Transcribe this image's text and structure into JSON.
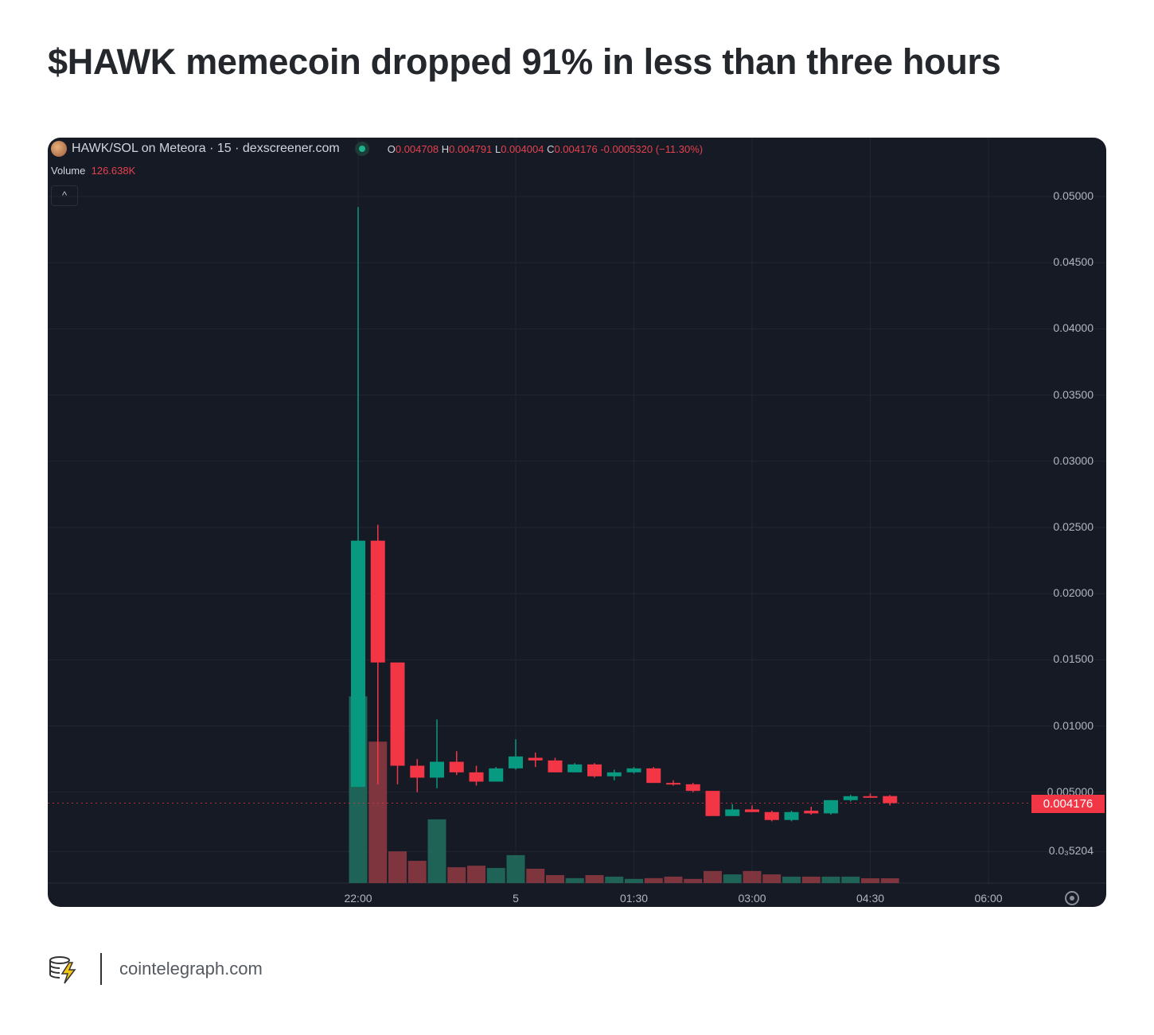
{
  "title": "$HAWK memecoin dropped 91% in less than three hours",
  "footer": {
    "site": "cointelegraph.com"
  },
  "chart_data": {
    "type": "candlestick",
    "header": {
      "symbol": "HAWK/SOL on Meteora · 15 · dexscreener.com",
      "o_label": "O",
      "o": "0.004708",
      "h_label": "H",
      "h": "0.004791",
      "l_label": "L",
      "l": "0.004004",
      "c_label": "C",
      "c": "0.004176",
      "change": "-0.0005320 (−11.30%)",
      "volume_label": "Volume",
      "volume": "126.638K",
      "collapse_icon": "^"
    },
    "last_price": "0.004176",
    "ylim": [
      0,
      0.05
    ],
    "yticks": [
      "0.05000",
      "0.04500",
      "0.04000",
      "0.03500",
      "0.03000",
      "0.02500",
      "0.02000",
      "0.01500",
      "0.01000",
      "0.005000",
      "0.0₃5204"
    ],
    "ytick_values": [
      0.05,
      0.045,
      0.04,
      0.035,
      0.03,
      0.025,
      0.02,
      0.015,
      0.01,
      0.005,
      0.0005204
    ],
    "xticks": [
      "22:00",
      "5",
      "01:30",
      "03:00",
      "04:30",
      "06:00"
    ],
    "xtick_index": [
      0,
      8,
      14,
      20,
      26,
      32
    ],
    "interval_minutes": 15,
    "colors": {
      "up": "#089981",
      "down": "#f23645",
      "bg": "#161a25"
    },
    "candles": [
      {
        "o": 0.0054,
        "h": 0.0492,
        "l": 0.0054,
        "c": 0.024,
        "v": 4950
      },
      {
        "o": 0.024,
        "h": 0.0252,
        "l": 0.0056,
        "c": 0.0148,
        "v": 3750
      },
      {
        "o": 0.0148,
        "h": 0.0148,
        "l": 0.0056,
        "c": 0.007,
        "v": 840
      },
      {
        "o": 0.007,
        "h": 0.0075,
        "l": 0.005,
        "c": 0.0061,
        "v": 590
      },
      {
        "o": 0.0061,
        "h": 0.0105,
        "l": 0.0053,
        "c": 0.0073,
        "v": 1690
      },
      {
        "o": 0.0073,
        "h": 0.0081,
        "l": 0.0063,
        "c": 0.0065,
        "v": 420
      },
      {
        "o": 0.0065,
        "h": 0.007,
        "l": 0.0055,
        "c": 0.0058,
        "v": 460
      },
      {
        "o": 0.0058,
        "h": 0.0069,
        "l": 0.0058,
        "c": 0.0068,
        "v": 400
      },
      {
        "o": 0.0068,
        "h": 0.009,
        "l": 0.0067,
        "c": 0.0077,
        "v": 740
      },
      {
        "o": 0.0076,
        "h": 0.008,
        "l": 0.0069,
        "c": 0.0074,
        "v": 380
      },
      {
        "o": 0.0074,
        "h": 0.0076,
        "l": 0.0065,
        "c": 0.0065,
        "v": 210
      },
      {
        "o": 0.0065,
        "h": 0.0072,
        "l": 0.0065,
        "c": 0.0071,
        "v": 130
      },
      {
        "o": 0.0071,
        "h": 0.0072,
        "l": 0.0061,
        "c": 0.0062,
        "v": 210
      },
      {
        "o": 0.0062,
        "h": 0.0067,
        "l": 0.0059,
        "c": 0.0065,
        "v": 170
      },
      {
        "o": 0.0065,
        "h": 0.0069,
        "l": 0.0064,
        "c": 0.0068,
        "v": 110
      },
      {
        "o": 0.0068,
        "h": 0.0069,
        "l": 0.0057,
        "c": 0.0057,
        "v": 130
      },
      {
        "o": 0.0057,
        "h": 0.0059,
        "l": 0.0055,
        "c": 0.0056,
        "v": 170
      },
      {
        "o": 0.0056,
        "h": 0.0057,
        "l": 0.005,
        "c": 0.0051,
        "v": 110
      },
      {
        "o": 0.0051,
        "h": 0.0051,
        "l": 0.0032,
        "c": 0.0032,
        "v": 320
      },
      {
        "o": 0.0032,
        "h": 0.0041,
        "l": 0.0032,
        "c": 0.0037,
        "v": 230
      },
      {
        "o": 0.0037,
        "h": 0.004,
        "l": 0.0035,
        "c": 0.0035,
        "v": 320
      },
      {
        "o": 0.0035,
        "h": 0.0036,
        "l": 0.0028,
        "c": 0.0029,
        "v": 230
      },
      {
        "o": 0.0029,
        "h": 0.0036,
        "l": 0.0028,
        "c": 0.0035,
        "v": 170
      },
      {
        "o": 0.0036,
        "h": 0.0039,
        "l": 0.0033,
        "c": 0.0034,
        "v": 170
      },
      {
        "o": 0.0034,
        "h": 0.0044,
        "l": 0.0033,
        "c": 0.0044,
        "v": 170
      },
      {
        "o": 0.0044,
        "h": 0.0048,
        "l": 0.0043,
        "c": 0.0047,
        "v": 170
      },
      {
        "o": 0.0047,
        "h": 0.0049,
        "l": 0.0046,
        "c": 0.0046,
        "v": 127
      },
      {
        "o": 0.004708,
        "h": 0.004791,
        "l": 0.004004,
        "c": 0.004176,
        "v": 126.638
      }
    ]
  }
}
